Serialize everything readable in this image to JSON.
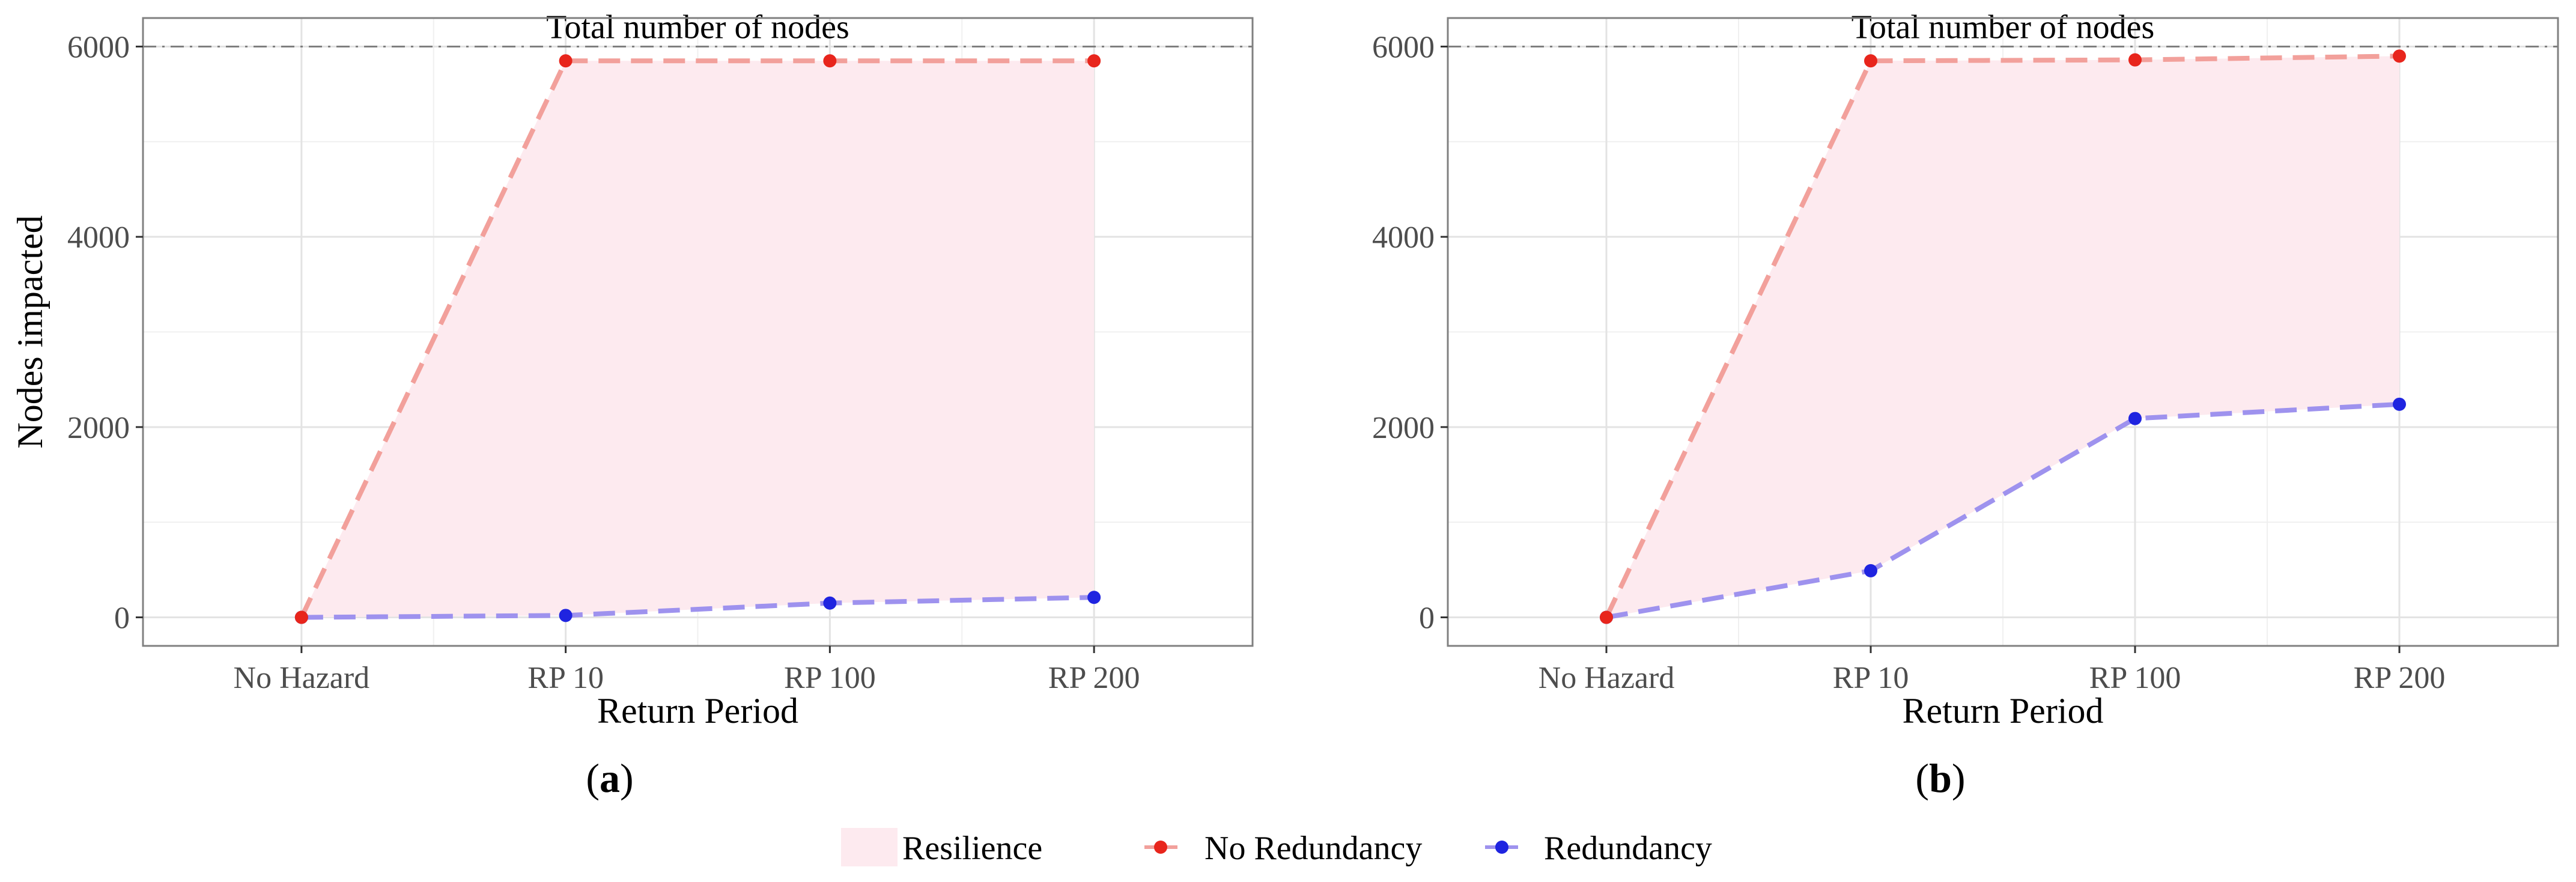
{
  "figure": {
    "legend": {
      "resilience_label": "Resilience",
      "no_redundancy_label": "No Redundancy",
      "redundancy_label": "Redundancy"
    },
    "colors": {
      "no_redundancy": "#E8251C",
      "no_redundancy_line": "#F2A09B",
      "redundancy": "#1F24E0",
      "redundancy_line": "#9E92EE",
      "resilience_fill": "#FDEAEF",
      "reference_line": "#7f7f7f"
    }
  },
  "chart_data": [
    {
      "type": "line",
      "panel_label": "(a)",
      "panel_letter": "a",
      "categories": [
        "No Hazard",
        "RP 10",
        "RP 100",
        "RP 200"
      ],
      "series": [
        {
          "name": "No Redundancy",
          "values": [
            0,
            5850,
            5850,
            5850
          ]
        },
        {
          "name": "Redundancy",
          "values": [
            0,
            20,
            150,
            210
          ]
        }
      ],
      "shaded_region": "Resilience",
      "reference_line": {
        "value": 6000,
        "label": "Total number of nodes"
      },
      "xlabel": "Return Period",
      "ylabel": "Nodes impacted",
      "yticks": [
        0,
        2000,
        4000,
        6000
      ],
      "ylim": [
        -300,
        6300
      ],
      "grid": true
    },
    {
      "type": "line",
      "panel_label": "(b)",
      "panel_letter": "b",
      "categories": [
        "No Hazard",
        "RP 10",
        "RP 100",
        "RP 200"
      ],
      "series": [
        {
          "name": "No Redundancy",
          "values": [
            0,
            5850,
            5860,
            5900
          ]
        },
        {
          "name": "Redundancy",
          "values": [
            0,
            490,
            2090,
            2240
          ]
        }
      ],
      "shaded_region": "Resilience",
      "reference_line": {
        "value": 6000,
        "label": "Total number of nodes"
      },
      "xlabel": "Return Period",
      "ylabel": "",
      "yticks": [
        0,
        2000,
        4000,
        6000
      ],
      "ylim": [
        -300,
        6300
      ],
      "grid": true
    }
  ]
}
